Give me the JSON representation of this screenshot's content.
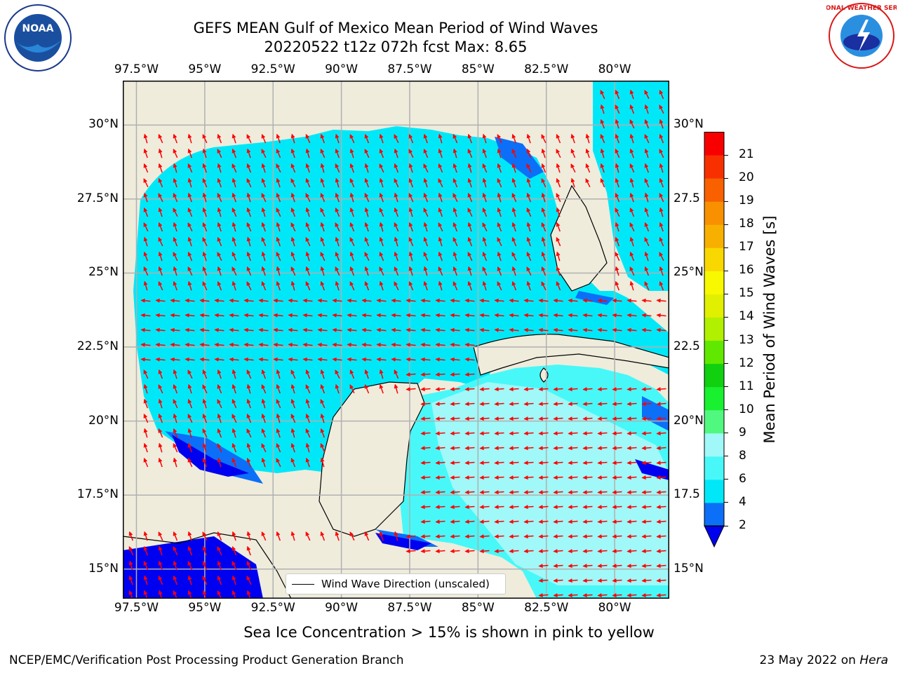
{
  "header": {
    "title_line1": "GEFS MEAN Gulf of Mexico Mean Period of Wind Waves",
    "title_line2": "20220522 t12z 072h fcst   Max: 8.65"
  },
  "logos": {
    "left": "NOAA",
    "right": "NATIONAL WEATHER SERVICE",
    "left_ring": "NATIONAL OCEANIC AND ATMOSPHERIC ADMINISTRATION · U.S. DEPARTMENT OF COMMERCE"
  },
  "map": {
    "lon_ticks": [
      "97.5°W",
      "95°W",
      "92.5°W",
      "90°W",
      "87.5°W",
      "85°W",
      "82.5°W",
      "80°W"
    ],
    "lat_ticks_left": [
      "30°N",
      "27.5°N",
      "25°N",
      "22.5°N",
      "20°N",
      "17.5°N",
      "15°N"
    ],
    "lat_ticks_right": [
      "30°N",
      "27.5",
      "25°N",
      "22.5",
      "20°N",
      "17.5",
      "15°N"
    ],
    "lon_range": [
      -98,
      -78
    ],
    "lat_range": [
      14,
      31.5
    ],
    "land_color": "#efecdc",
    "arrow_color": "#ff0000",
    "gridlines": true,
    "legend_label": "Wind Wave Direction (unscaled)",
    "legend_placement": "bottom-center"
  },
  "colorbar": {
    "label": "Mean Period of Wind Waves [s]",
    "tick_labels": [
      "2",
      "4",
      "6",
      "8",
      "9",
      "10",
      "11",
      "12",
      "13",
      "14",
      "15",
      "16",
      "17",
      "18",
      "19",
      "20",
      "21"
    ],
    "colors": [
      "#0c6ff8",
      "#00e8f8",
      "#48f8f8",
      "#a0f8f8",
      "#50f880",
      "#18f030",
      "#10d010",
      "#60e800",
      "#b0f000",
      "#e0f000",
      "#f8f800",
      "#f8d800",
      "#f8b000",
      "#f89000",
      "#f86000",
      "#f83000",
      "#f80000"
    ],
    "extend_color": "#0000f0"
  },
  "caption": "Sea Ice Concentration > 15% is shown in pink to yellow",
  "footer": {
    "left": "NCEP/EMC/Verification Post Processing Product Generation Branch",
    "right_date": "23 May 2022 on ",
    "right_machine": "Hera"
  }
}
